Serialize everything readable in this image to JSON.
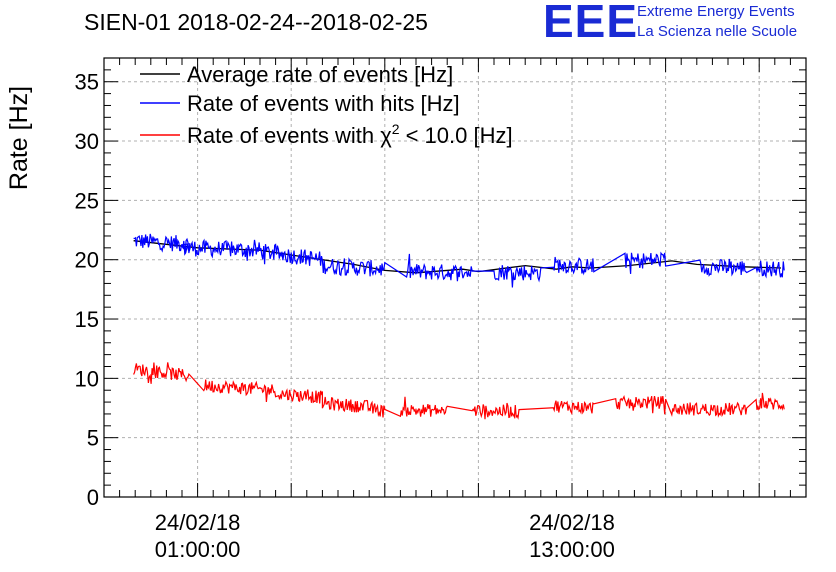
{
  "header": {
    "title": "SIEN-01 2018-02-24--2018-02-25",
    "logo_text": "EEE",
    "org_line1": "Extreme Energy Events",
    "org_line2": "La Scienza nelle Scuole"
  },
  "colors": {
    "black_series": "#000000",
    "blue_series": "#0000ff",
    "red_series": "#ff0000",
    "logo": "#1a2bd4",
    "grid": "#b0b0b0"
  },
  "chart_data": {
    "type": "line",
    "title": "SIEN-01 2018-02-24--2018-02-25",
    "xlabel": "",
    "ylabel": "Rate [Hz]",
    "ylim": [
      0,
      37
    ],
    "xlim_hours": [
      -2.0,
      20.5
    ],
    "x_unit": "hours since 2018-02-24 00:00",
    "yticks": [
      0,
      5,
      10,
      15,
      20,
      25,
      30,
      35
    ],
    "xticks": [
      {
        "hour": 1,
        "date": "24/02/18",
        "time": "01:00:00"
      },
      {
        "hour": 13,
        "date": "24/02/18",
        "time": "13:00:00"
      }
    ],
    "grid": true,
    "legend_position": "top-left",
    "series": [
      {
        "name": "Average rate of events [Hz]",
        "legend_label": "Average rate of events [Hz]",
        "color": "#000000",
        "x": [
          -1.05,
          1.0,
          3.0,
          4.0,
          6.0,
          7.0,
          8.0,
          9.5,
          10.0,
          11.5,
          12.5,
          13.0,
          13.6,
          14.8,
          16.2,
          17.0,
          18.5,
          19.7
        ],
        "y": [
          21.6,
          21.0,
          20.8,
          20.4,
          19.6,
          19.1,
          18.9,
          19.2,
          19.0,
          19.5,
          19.2,
          19.4,
          19.3,
          19.5,
          19.9,
          19.6,
          19.4,
          19.3
        ]
      },
      {
        "name": "Rate of events with hits [Hz]",
        "legend_label": "Rate of events with hits [Hz]",
        "color": "#0000ff",
        "segments": [
          {
            "x_start": -1.05,
            "x_end": 0.75,
            "mean_start": 21.6,
            "mean_end": 21.3
          },
          {
            "x_start": 0.5,
            "x_end": 3.0,
            "mean_start": 21.0,
            "mean_end": 20.8
          },
          {
            "x_start": 3.0,
            "x_end": 5.0,
            "mean_start": 20.7,
            "mean_end": 20.0
          },
          {
            "x_start": 5.0,
            "x_end": 7.0,
            "mean_start": 19.5,
            "mean_end": 19.2
          },
          {
            "x_start": 7.7,
            "x_end": 9.8,
            "mean_start": 19.0,
            "mean_end": 18.9
          },
          {
            "x_start": 10.5,
            "x_end": 12.0,
            "mean_start": 19.0,
            "mean_end": 18.9
          },
          {
            "x_start": 12.4,
            "x_end": 13.7,
            "mean_start": 19.6,
            "mean_end": 19.4
          },
          {
            "x_start": 14.7,
            "x_end": 16.0,
            "mean_start": 19.9,
            "mean_end": 20.0
          },
          {
            "x_start": 17.1,
            "x_end": 18.6,
            "mean_start": 19.4,
            "mean_end": 19.3
          },
          {
            "x_start": 18.9,
            "x_end": 19.8,
            "mean_start": 19.3,
            "mean_end": 19.2
          }
        ],
        "noise_amplitude": 0.7
      },
      {
        "name": "Rate of events with chi2 < 10.0 [Hz]",
        "legend_label": "Rate of events with",
        "legend_symbol": "χ",
        "legend_superscript": "2",
        "legend_suffix": "< 10.0 [Hz]",
        "color": "#ff0000",
        "segments": [
          {
            "x_start": -1.05,
            "x_end": 0.75,
            "mean_start": 10.8,
            "mean_end": 10.2
          },
          {
            "x_start": 1.2,
            "x_end": 3.5,
            "mean_start": 9.4,
            "mean_end": 9.0
          },
          {
            "x_start": 3.6,
            "x_end": 5.0,
            "mean_start": 8.7,
            "mean_end": 8.4
          },
          {
            "x_start": 5.0,
            "x_end": 6.5,
            "mean_start": 7.9,
            "mean_end": 7.6
          },
          {
            "x_start": 6.5,
            "x_end": 7.0,
            "mean_start": 7.5,
            "mean_end": 7.2
          },
          {
            "x_start": 7.5,
            "x_end": 9.0,
            "mean_start": 7.3,
            "mean_end": 7.3
          },
          {
            "x_start": 9.8,
            "x_end": 11.3,
            "mean_start": 7.3,
            "mean_end": 7.2
          },
          {
            "x_start": 12.4,
            "x_end": 13.7,
            "mean_start": 7.7,
            "mean_end": 7.5
          },
          {
            "x_start": 14.4,
            "x_end": 16.0,
            "mean_start": 7.9,
            "mean_end": 8.0
          },
          {
            "x_start": 16.2,
            "x_end": 18.6,
            "mean_start": 7.4,
            "mean_end": 7.4
          },
          {
            "x_start": 18.9,
            "x_end": 19.8,
            "mean_start": 7.9,
            "mean_end": 7.8
          }
        ],
        "noise_amplitude": 0.55
      }
    ]
  }
}
